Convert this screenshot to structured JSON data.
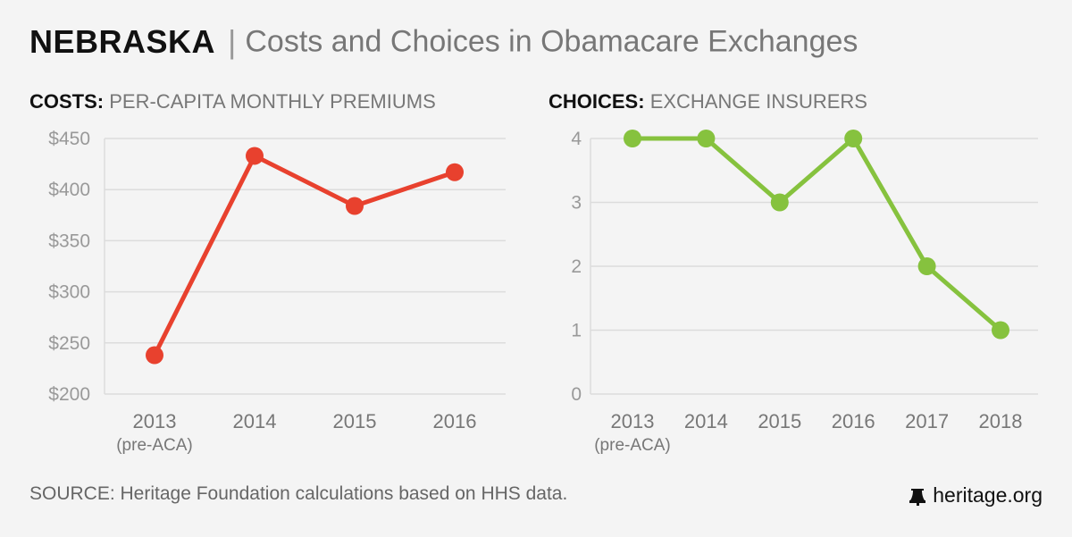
{
  "header": {
    "state": "NEBRASKA",
    "separator": "|",
    "subtitle": "Costs and Choices in Obamacare Exchanges"
  },
  "colors": {
    "costs_line": "#e8412e",
    "choices_line": "#86c23e"
  },
  "chart_data": [
    {
      "type": "line",
      "title_bold": "COSTS:",
      "title_rest": "PER-CAPITA MONTHLY PREMIUMS",
      "categories": [
        "2013",
        "2014",
        "2015",
        "2016"
      ],
      "category_sublabels": [
        "(pre-ACA)",
        "",
        "",
        ""
      ],
      "values": [
        238,
        433,
        384,
        417
      ],
      "ylim": [
        200,
        450
      ],
      "yticks": [
        200,
        250,
        300,
        350,
        400,
        450
      ],
      "ytick_labels": [
        "$200",
        "$250",
        "$300",
        "$350",
        "$400",
        "$450"
      ],
      "grid": true
    },
    {
      "type": "line",
      "title_bold": "CHOICES:",
      "title_rest": "EXCHANGE INSURERS",
      "categories": [
        "2013",
        "2014",
        "2015",
        "2016",
        "2017",
        "2018"
      ],
      "category_sublabels": [
        "(pre-ACA)",
        "",
        "",
        "",
        "",
        ""
      ],
      "values": [
        4,
        4,
        3,
        4,
        2,
        1
      ],
      "ylim": [
        0,
        4
      ],
      "yticks": [
        0,
        1,
        2,
        3,
        4
      ],
      "ytick_labels": [
        "0",
        "1",
        "2",
        "3",
        "4"
      ],
      "grid": true
    }
  ],
  "footer": {
    "source": "SOURCE: Heritage Foundation calculations based on HHS data.",
    "logo_text": "heritage.org",
    "logo_icon": "liberty-bell-icon"
  }
}
